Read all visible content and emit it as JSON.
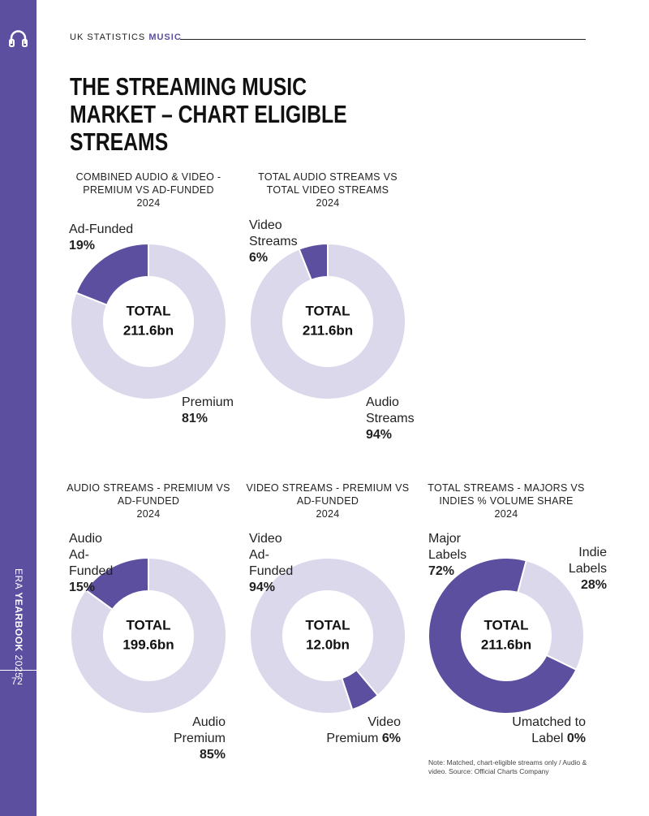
{
  "header": {
    "section": "UK STATISTICS",
    "topic": "MUSIC"
  },
  "title": "THE STREAMING MUSIC MARKET – CHART ELIGIBLE STREAMS",
  "sidebar": {
    "publication": "ERA",
    "edition": "YEARBOOK",
    "year": "2025",
    "page": "72"
  },
  "note": "Note: Matched, chart-eligible streams only / Audio & video. Source: Official Charts Company",
  "chart_data": [
    {
      "type": "pie",
      "title": "COMBINED AUDIO & VIDEO - PREMIUM VS AD-FUNDED",
      "subtitle": "2024",
      "center_title": "TOTAL",
      "center_value": "211.6bn",
      "categories": [
        "Ad-Funded",
        "Premium"
      ],
      "values": [
        19,
        81
      ],
      "value_labels": [
        "19%",
        "81%"
      ],
      "colors": [
        "#5c4f9f",
        "#dcd8ec"
      ]
    },
    {
      "type": "pie",
      "title": "TOTAL AUDIO STREAMS VS TOTAL VIDEO STREAMS",
      "subtitle": "2024",
      "center_title": "TOTAL",
      "center_value": "211.6bn",
      "categories": [
        "Video Streams",
        "Audio Streams"
      ],
      "values": [
        6,
        94
      ],
      "value_labels": [
        "6%",
        "94%"
      ],
      "colors": [
        "#5c4f9f",
        "#dcd8ec"
      ]
    },
    {
      "type": "pie",
      "title": "AUDIO STREAMS - PREMIUM VS AD-FUNDED",
      "subtitle": "2024",
      "center_title": "TOTAL",
      "center_value": "199.6bn",
      "categories": [
        "Audio Ad-Funded",
        "Audio Premium"
      ],
      "values": [
        15,
        85
      ],
      "value_labels": [
        "15%",
        "85%"
      ],
      "colors": [
        "#5c4f9f",
        "#dcd8ec"
      ]
    },
    {
      "type": "pie",
      "title": "VIDEO STREAMS - PREMIUM VS AD-FUNDED",
      "subtitle": "2024",
      "center_title": "TOTAL",
      "center_value": "12.0bn",
      "categories": [
        "Video Ad-Funded",
        "Video Premium"
      ],
      "values": [
        94,
        6
      ],
      "value_labels": [
        "94%",
        "6%"
      ],
      "colors": [
        "#dcd8ec",
        "#5c4f9f"
      ]
    },
    {
      "type": "pie",
      "title": "TOTAL STREAMS - MAJORS VS INDIES % VOLUME SHARE",
      "subtitle": "2024",
      "center_title": "TOTAL",
      "center_value": "211.6bn",
      "categories": [
        "Major Labels",
        "Umatched to Label",
        "Indie Labels"
      ],
      "values": [
        72,
        0,
        28
      ],
      "value_labels": [
        "72%",
        "0%",
        "28%"
      ],
      "colors": [
        "#5c4f9f",
        "#5c4f9f",
        "#dcd8ec"
      ]
    }
  ]
}
